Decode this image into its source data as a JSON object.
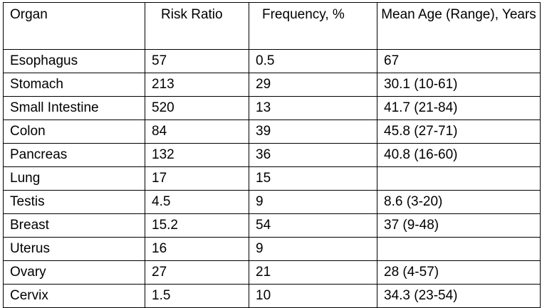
{
  "table": {
    "headers": [
      "Organ",
      "Risk Ratio",
      "Frequency, %",
      "Mean Age (Range), Years"
    ],
    "rows": [
      [
        "Esophagus",
        "57",
        "0.5",
        "67"
      ],
      [
        "Stomach",
        "213",
        "29",
        "30.1 (10-61)"
      ],
      [
        "Small Intestine",
        "520",
        "13",
        "41.7 (21-84)"
      ],
      [
        "Colon",
        "84",
        "39",
        "45.8 (27-71)"
      ],
      [
        "Pancreas",
        "132",
        "36",
        "40.8 (16-60)"
      ],
      [
        "Lung",
        "17",
        "15",
        ""
      ],
      [
        "Testis",
        "4.5",
        "9",
        "8.6 (3-20)"
      ],
      [
        "Breast",
        "15.2",
        "54",
        "37 (9-48)"
      ],
      [
        "Uterus",
        "16",
        "9",
        ""
      ],
      [
        "Ovary",
        "27",
        "21",
        "28 (4-57)"
      ],
      [
        "Cervix",
        "1.5",
        "10",
        "34.3 (23-54)"
      ]
    ]
  }
}
